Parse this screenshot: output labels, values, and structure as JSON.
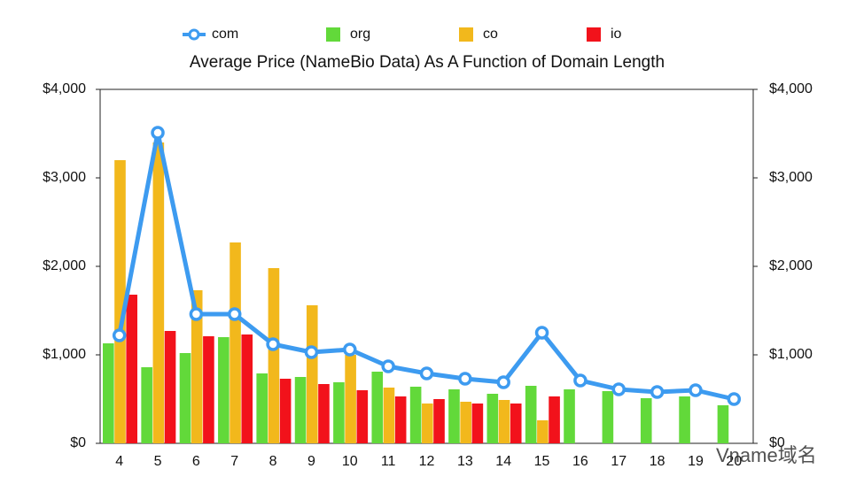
{
  "chart_data": {
    "type": "bar",
    "title": "Average Price (NameBio Data) As A Function of Domain Length",
    "categories": [
      "4",
      "5",
      "6",
      "7",
      "8",
      "9",
      "10",
      "11",
      "12",
      "13",
      "14",
      "15",
      "16",
      "17",
      "18",
      "19",
      "20"
    ],
    "series": [
      {
        "name": "com",
        "type": "line",
        "color": "#3d9bf0",
        "values": [
          1220,
          3510,
          1460,
          1460,
          1120,
          1030,
          1060,
          870,
          790,
          730,
          690,
          1250,
          710,
          610,
          580,
          600,
          500
        ]
      },
      {
        "name": "org",
        "color": "#62d93a",
        "values": [
          1130,
          860,
          1020,
          1200,
          790,
          750,
          690,
          810,
          640,
          610,
          560,
          650,
          610,
          590,
          510,
          530,
          430
        ]
      },
      {
        "name": "co",
        "color": "#f2b81c",
        "values": [
          3200,
          3400,
          1730,
          2270,
          1980,
          1560,
          1000,
          630,
          450,
          470,
          490,
          260,
          null,
          null,
          null,
          null,
          null
        ]
      },
      {
        "name": "io",
        "color": "#f2121b",
        "values": [
          1680,
          1270,
          1210,
          1230,
          730,
          670,
          600,
          530,
          500,
          450,
          450,
          530,
          null,
          null,
          null,
          null,
          null
        ]
      }
    ],
    "ylim": [
      0,
      4000
    ],
    "yticks": [
      {
        "value": 0,
        "label": "$0"
      },
      {
        "value": 1000,
        "label": "$1,000"
      },
      {
        "value": 2000,
        "label": "$2,000"
      },
      {
        "value": 3000,
        "label": "$3,000"
      },
      {
        "value": 4000,
        "label": "$4,000"
      }
    ],
    "y2lim": [
      0,
      4000
    ],
    "y2ticks": [
      {
        "value": 0,
        "label": "$0"
      },
      {
        "value": 1000,
        "label": "$1,000"
      },
      {
        "value": 2000,
        "label": "$2,000"
      },
      {
        "value": 3000,
        "label": "$3,000"
      },
      {
        "value": 4000,
        "label": "$4,000"
      }
    ],
    "legend": "top",
    "watermark": "Vname域名"
  }
}
